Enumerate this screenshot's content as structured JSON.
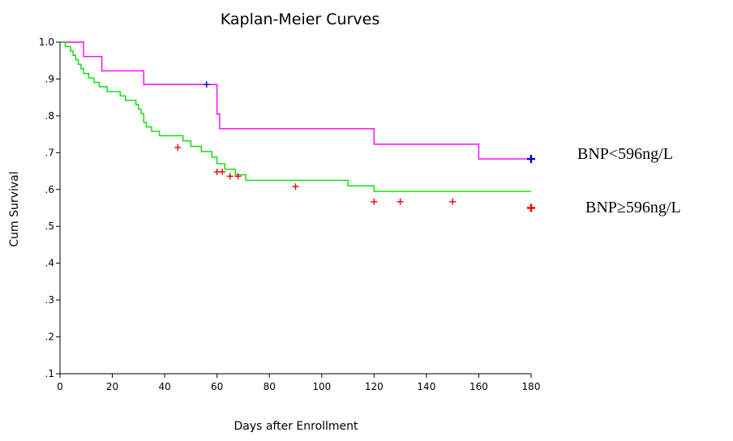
{
  "chart_data": {
    "type": "line",
    "subtype": "kaplan-meier step",
    "title": "Kaplan-Meier Curves",
    "xlabel": "Days after Enrollment",
    "ylabel": "Cum Survival",
    "xlim": [
      0,
      180
    ],
    "ylim": [
      0.1,
      1.0
    ],
    "x_ticks": [
      0,
      20,
      40,
      60,
      80,
      100,
      120,
      140,
      160,
      180
    ],
    "x_tick_labels": [
      "0",
      "20",
      "40",
      "60",
      "80",
      "100",
      "120",
      "140",
      "160",
      "180"
    ],
    "y_ticks": [
      1.0,
      0.9,
      0.8,
      0.7,
      0.6,
      0.5,
      0.4,
      0.3,
      0.2,
      0.1
    ],
    "y_tick_labels": [
      "1.0",
      ".9",
      ".8",
      ".7",
      ".6",
      ".5",
      ".4",
      ".3",
      ".2",
      ".1"
    ],
    "grid": false,
    "series": [
      {
        "name": "BNP<596ng/L",
        "color": "#ff00ff",
        "censor_color": "#0000cc",
        "steps": [
          [
            0,
            1.0
          ],
          [
            9,
            0.961
          ],
          [
            16,
            0.922
          ],
          [
            32,
            0.885
          ],
          [
            60,
            0.805
          ],
          [
            61,
            0.765
          ],
          [
            120,
            0.723
          ],
          [
            160,
            0.683
          ],
          [
            180,
            0.683
          ]
        ],
        "censored": [
          [
            56,
            0.885
          ],
          [
            180,
            0.683
          ]
        ]
      },
      {
        "name": "BNP≥596ng/L",
        "color": "#00dd00",
        "censor_color": "#ee0000",
        "steps": [
          [
            0,
            1.0
          ],
          [
            2,
            0.988
          ],
          [
            4,
            0.976
          ],
          [
            5,
            0.964
          ],
          [
            6,
            0.952
          ],
          [
            7,
            0.94
          ],
          [
            8,
            0.928
          ],
          [
            9,
            0.915
          ],
          [
            11,
            0.903
          ],
          [
            13,
            0.891
          ],
          [
            15,
            0.879
          ],
          [
            18,
            0.866
          ],
          [
            23,
            0.854
          ],
          [
            25,
            0.842
          ],
          [
            29,
            0.83
          ],
          [
            30,
            0.818
          ],
          [
            31,
            0.806
          ],
          [
            32,
            0.782
          ],
          [
            33,
            0.77
          ],
          [
            35,
            0.758
          ],
          [
            38,
            0.746
          ],
          [
            47,
            0.732
          ],
          [
            50,
            0.717
          ],
          [
            54,
            0.703
          ],
          [
            58,
            0.688
          ],
          [
            60,
            0.67
          ],
          [
            63,
            0.655
          ],
          [
            67,
            0.64
          ],
          [
            71,
            0.625
          ],
          [
            110,
            0.61
          ],
          [
            120,
            0.595
          ],
          [
            180,
            0.595
          ]
        ],
        "censored": [
          [
            45,
            0.714
          ],
          [
            60,
            0.648
          ],
          [
            62,
            0.648
          ],
          [
            65,
            0.636
          ],
          [
            68,
            0.636
          ],
          [
            90,
            0.608
          ],
          [
            120,
            0.567
          ],
          [
            130,
            0.567
          ],
          [
            150,
            0.567
          ],
          [
            180,
            0.55
          ]
        ]
      }
    ]
  },
  "legend_labels": {
    "group_low": "BNP<596ng/L",
    "group_high": "BNP≥596ng/L"
  }
}
